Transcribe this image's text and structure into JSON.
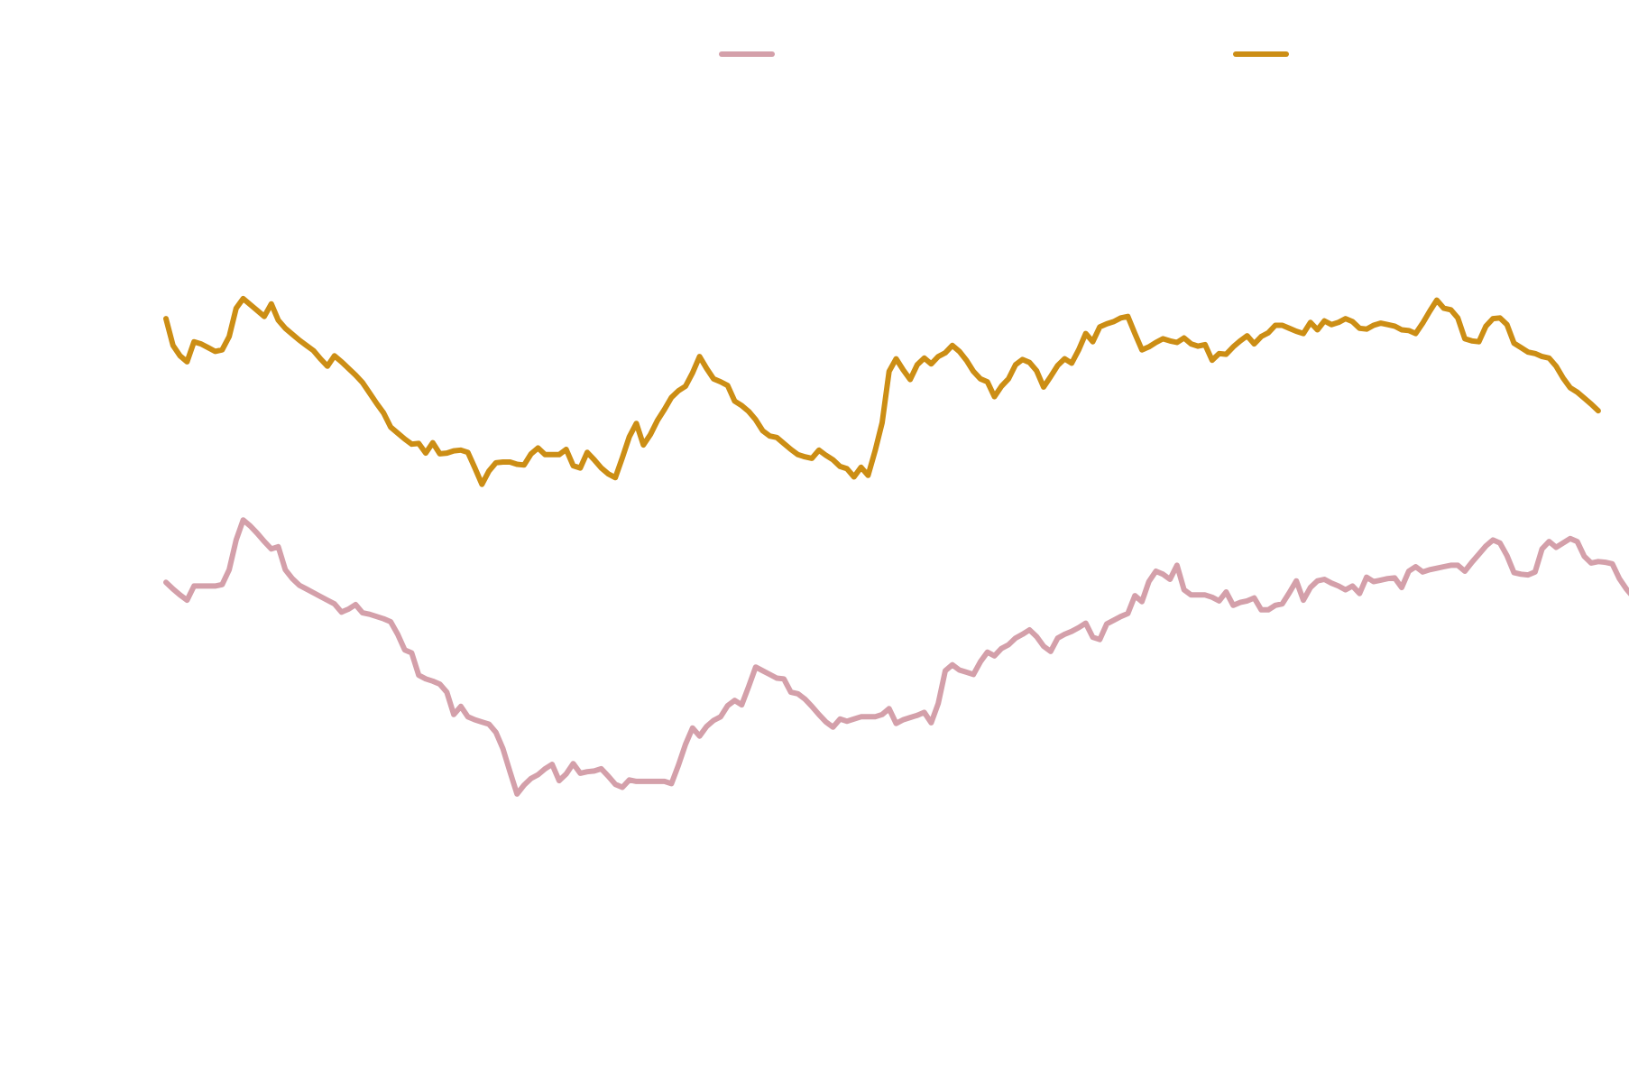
{
  "chart_data": {
    "type": "line",
    "title": "",
    "xlabel": "",
    "ylabel": "",
    "grid": false,
    "axes_visible": false,
    "legend_placement": "top",
    "x_range": [
      0,
      199
    ],
    "y_range": [
      -60,
      70
    ],
    "series": [
      {
        "color": "#d4a0aa",
        "values": [
          0.1,
          -0.8,
          -1.6,
          -2.3,
          -0.4,
          -0.4,
          -0.4,
          -0.4,
          -0.2,
          1.8,
          5.8,
          8.5,
          7.7,
          6.7,
          5.6,
          4.6,
          4.9,
          1.8,
          0.6,
          -0.3,
          -0.8,
          -1.3,
          -1.8,
          -2.3,
          -2.8,
          -3.9,
          -3.5,
          -2.9,
          -4.0,
          -4.2,
          -4.5,
          -4.8,
          -5.2,
          -6.9,
          -9.0,
          -9.4,
          -12.4,
          -12.9,
          -13.2,
          -13.6,
          -14.7,
          -17.7,
          -16.6,
          -18.0,
          -18.4,
          -18.7,
          -19.0,
          -20.1,
          -22.3,
          -25.4,
          -28.4,
          -27.2,
          -26.3,
          -25.8,
          -25.0,
          -24.4,
          -26.6,
          -25.7,
          -24.3,
          -25.6,
          -25.4,
          -25.3,
          -25.0,
          -26.0,
          -27.1,
          -27.5,
          -26.5,
          -26.7,
          -26.7,
          -26.7,
          -26.7,
          -26.7,
          -27.0,
          -24.5,
          -21.7,
          -19.5,
          -20.6,
          -19.3,
          -18.5,
          -18.0,
          -16.5,
          -15.8,
          -16.4,
          -13.9,
          -11.3,
          -11.8,
          -12.3,
          -12.8,
          -12.9,
          -14.7,
          -14.9,
          -15.6,
          -16.6,
          -17.7,
          -18.7,
          -19.4,
          -18.3,
          -18.6,
          -18.3,
          -18.0,
          -18.0,
          -18.0,
          -17.7,
          -16.9,
          -18.9,
          -18.4,
          -18.1,
          -17.8,
          -17.4,
          -18.8,
          -16.2,
          -11.8,
          -11.0,
          -11.7,
          -12.0,
          -12.3,
          -10.6,
          -9.3,
          -9.8,
          -8.8,
          -8.3,
          -7.4,
          -6.9,
          -6.3,
          -7.2,
          -8.5,
          -9.2,
          -7.4,
          -6.9,
          -6.5,
          -6.0,
          -5.4,
          -7.3,
          -7.6,
          -5.5,
          -5.0,
          -4.5,
          -4.1,
          -1.7,
          -2.5,
          0.2,
          1.6,
          1.2,
          0.5,
          2.4,
          -0.9,
          -1.6,
          -1.6,
          -1.6,
          -1.9,
          -2.4,
          -1.2,
          -3.0,
          -2.6,
          -2.4,
          -2.0,
          -3.6,
          -3.6,
          -3.0,
          -2.8,
          -1.3,
          0.3,
          -2.3,
          -0.6,
          0.3,
          0.5,
          0.0,
          -0.4,
          -0.9,
          -0.4,
          -1.4,
          0.8,
          0.2,
          0.4,
          0.6,
          0.7,
          -0.6,
          1.6,
          2.2,
          1.5,
          1.8,
          2.0,
          2.2,
          2.4,
          2.4,
          1.6,
          2.8,
          3.9,
          5.0,
          5.8,
          5.4,
          3.7,
          1.4,
          1.2,
          1.1,
          1.5,
          4.6,
          5.6,
          4.8,
          5.4,
          6.0,
          5.6,
          3.6,
          2.7,
          2.9,
          2.8,
          2.6,
          0.6,
          -0.8,
          -1.9,
          -2.8,
          -4.1,
          -5.2
        ]
      },
      {
        "color": "#cc8e15",
        "values": [
          35.6,
          32.0,
          30.6,
          29.8,
          32.5,
          32.2,
          31.7,
          31.2,
          31.4,
          33.2,
          37.0,
          38.3,
          37.5,
          36.7,
          35.9,
          37.6,
          35.4,
          34.3,
          33.5,
          32.7,
          32.0,
          31.3,
          30.2,
          29.2,
          30.6,
          29.8,
          28.9,
          28.0,
          27.0,
          25.6,
          24.2,
          22.9,
          21.0,
          20.2,
          19.4,
          18.7,
          18.8,
          17.5,
          18.9,
          17.4,
          17.5,
          17.8,
          17.9,
          17.6,
          15.5,
          13.3,
          15.1,
          16.2,
          16.3,
          16.3,
          16.0,
          15.9,
          17.4,
          18.2,
          17.3,
          17.3,
          17.3,
          18.0,
          15.8,
          15.5,
          17.6,
          16.6,
          15.5,
          14.7,
          14.2,
          16.9,
          19.7,
          21.5,
          18.6,
          20.0,
          21.9,
          23.4,
          25.0,
          25.9,
          26.5,
          28.3,
          30.5,
          28.9,
          27.5,
          27.1,
          26.6,
          24.5,
          23.9,
          23.1,
          22.0,
          20.5,
          19.8,
          19.6,
          18.8,
          18.0,
          17.3,
          17.0,
          16.8,
          17.9,
          17.2,
          16.6,
          15.7,
          15.4,
          14.3,
          15.6,
          14.5,
          17.8,
          21.6,
          28.5,
          30.2,
          28.7,
          27.4,
          29.4,
          30.3,
          29.5,
          30.5,
          31.0,
          32.0,
          31.2,
          30.0,
          28.5,
          27.5,
          27.1,
          25.1,
          26.5,
          27.5,
          29.4,
          30.1,
          29.7,
          28.6,
          26.4,
          27.8,
          29.3,
          30.2,
          29.6,
          31.4,
          33.6,
          32.5,
          34.5,
          34.9,
          35.2,
          35.7,
          35.9,
          33.6,
          31.4,
          31.8,
          32.4,
          32.9,
          32.6,
          32.4,
          33.0,
          32.2,
          31.9,
          32.1,
          30.0,
          30.9,
          30.8,
          31.8,
          32.6,
          33.3,
          32.2,
          33.2,
          33.7,
          34.7,
          34.7,
          34.3,
          33.9,
          33.6,
          35.1,
          34.1,
          35.3,
          34.8,
          35.1,
          35.6,
          35.2,
          34.3,
          34.2,
          34.7,
          35.0,
          34.8,
          34.6,
          34.1,
          34.0,
          33.6,
          35.0,
          36.6,
          38.1,
          37.0,
          36.8,
          35.7,
          32.9,
          32.6,
          32.5,
          34.6,
          35.6,
          35.7,
          34.8,
          32.3,
          31.7,
          31.1,
          30.9,
          30.5,
          30.3,
          29.2,
          27.6,
          26.3,
          25.7,
          24.9,
          24.1,
          23.2
        ]
      }
    ]
  }
}
